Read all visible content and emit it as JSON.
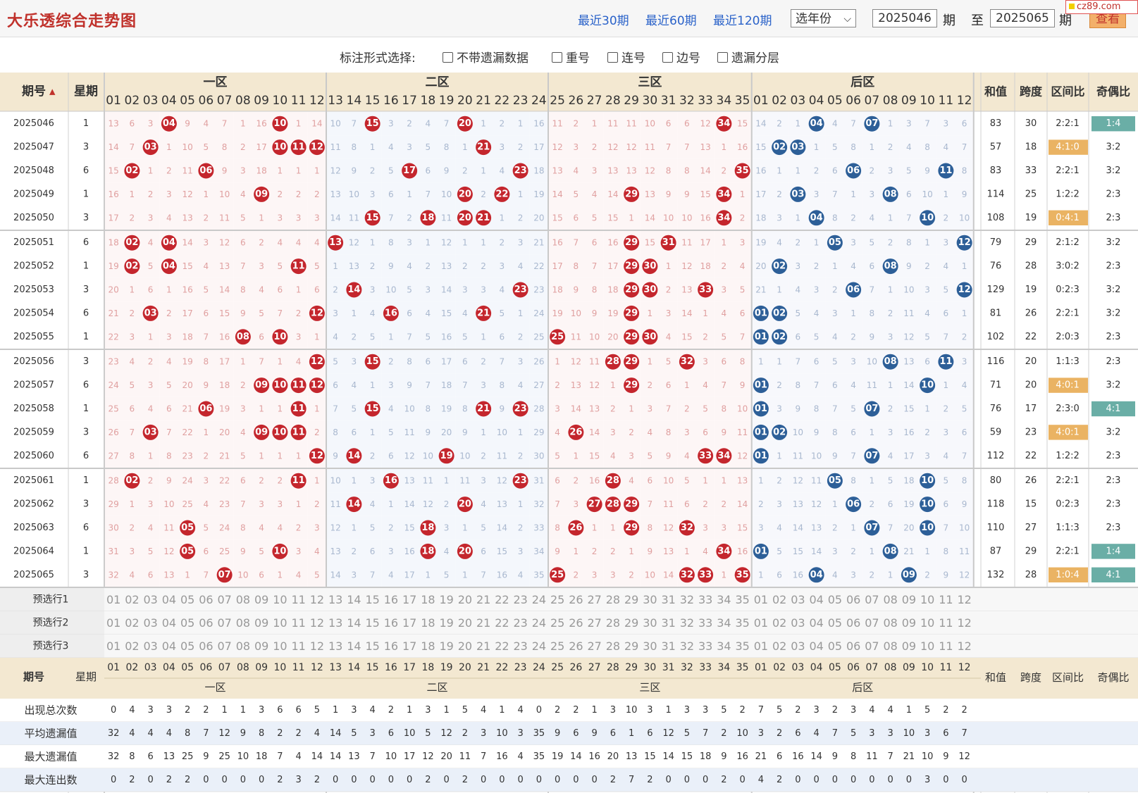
{
  "header": {
    "title": "大乐透综合走势图",
    "recent30": "最近30期",
    "recent60": "最近60期",
    "recent120": "最近120期",
    "year_select": "选年份",
    "from_issue": "2025046",
    "qi": "期",
    "to_label": "至",
    "to_issue": "2025065",
    "query": "查看",
    "brand": "cz89.com"
  },
  "options": {
    "label": "标注形式选择:",
    "items": [
      "不带遗漏数据",
      "重号",
      "连号",
      "边号",
      "遗漏分层"
    ]
  },
  "table": {
    "col_issue": "期号",
    "col_week": "星期",
    "zones": [
      "一区",
      "二区",
      "三区",
      "后区"
    ],
    "stat_cols": [
      "和值",
      "跨度",
      "区间比",
      "奇偶比"
    ],
    "rows": [
      {
        "issue": "2025046",
        "week": "1",
        "cells": "13,6,3,*,9,4,7,1,16,*,1,14,10,7,*,3,2,4,7,*,1,2,1,16,11,2,1,11,11,10,6,6,12,*,15,14,2,1,*,4,7,*,1,3,7,3,6",
        "sum": "83",
        "span": "30",
        "ratio": "2:2:1",
        "oe": "1:4",
        "hlratio": false,
        "hloe": "blue"
      },
      {
        "issue": "2025047",
        "week": "3",
        "cells": "14,7,*,1,10,5,8,2,17,*,*,*,11,8,1,4,3,5,8,1,*,3,2,17,12,3,2,12,12,11,7,7,13,1,16,15,*,*,1,5,8,1,2,4,8,4,7",
        "sum": "57",
        "span": "18",
        "ratio": "4:1:0",
        "oe": "3:2",
        "hlratio": "orange",
        "hloe": false
      },
      {
        "issue": "2025048",
        "week": "6",
        "cells": "15,*,1,2,11,*,9,3,18,1,1,1,12,9,2,5,*,6,9,2,1,4,*,18,13,4,3,13,13,12,8,8,14,2,*,16,1,1,2,6,*,2,3,5,9,*,8",
        "sum": "83",
        "span": "33",
        "ratio": "2:2:1",
        "oe": "3:2",
        "hlratio": false,
        "hloe": false
      },
      {
        "issue": "2025049",
        "week": "1",
        "cells": "16,1,2,3,12,1,10,4,*,2,2,2,13,10,3,6,1,7,10,*,2,*,1,19,14,5,4,14,*,13,9,9,15,*,1,17,2,*,3,7,1,3,*,6,10,1,9",
        "sum": "114",
        "span": "25",
        "ratio": "1:2:2",
        "oe": "2:3",
        "hlratio": false,
        "hloe": false
      },
      {
        "issue": "2025050",
        "week": "3",
        "cells": "17,2,3,4,13,2,11,5,1,3,3,3,14,11,*,7,2,*,11,*,*,1,2,20,15,6,5,15,1,14,10,10,16,*,2,18,3,1,*,8,2,4,1,7,*,2,10",
        "sum": "108",
        "span": "19",
        "ratio": "0:4:1",
        "oe": "2:3",
        "hlratio": "orange",
        "hloe": false
      },
      {
        "issue": "2025051",
        "week": "6",
        "cells": "18,*,4,*,14,3,12,6,2,4,4,4,*,12,1,8,3,1,12,1,1,2,3,21,16,7,6,16,*,15,*,11,17,1,3,19,4,2,1,*,3,5,2,8,1,3,*",
        "sum": "79",
        "span": "29",
        "ratio": "2:1:2",
        "oe": "3:2",
        "hlratio": false,
        "hloe": false
      },
      {
        "issue": "2025052",
        "week": "1",
        "cells": "19,*,5,*,15,4,13,7,3,5,*,5,1,13,2,9,4,2,13,2,2,3,4,22,17,8,7,17,*,*,1,12,18,2,4,20,*,3,2,1,4,6,*,9,2,4,1",
        "sum": "76",
        "span": "28",
        "ratio": "3:0:2",
        "oe": "2:3",
        "hlratio": false,
        "hloe": false
      },
      {
        "issue": "2025053",
        "week": "3",
        "cells": "20,1,6,1,16,5,14,8,4,6,1,6,2,*,3,10,5,3,14,3,3,4,*,23,18,9,8,18,*,*,2,13,*,3,5,21,1,4,3,2,*,7,1,10,3,5,*",
        "sum": "129",
        "span": "19",
        "ratio": "0:2:3",
        "oe": "3:2",
        "hlratio": false,
        "hloe": false
      },
      {
        "issue": "2025054",
        "week": "6",
        "cells": "21,2,*,2,17,6,15,9,5,7,2,*,3,1,4,*,6,4,15,4,*,5,1,24,19,10,9,19,*,1,3,14,1,4,6,*,*,5,4,3,1,8,2,11,4,6,1",
        "sum": "81",
        "span": "26",
        "ratio": "2:2:1",
        "oe": "3:2",
        "hlratio": false,
        "hloe": false
      },
      {
        "issue": "2025055",
        "week": "1",
        "cells": "22,3,1,3,18,7,16,*,6,*,3,1,4,2,5,1,7,5,16,5,1,6,2,25,*,11,10,20,*,*,4,15,2,5,7,*,*,6,5,4,2,9,3,12,5,7,2",
        "sum": "102",
        "span": "22",
        "ratio": "2:0:3",
        "oe": "2:3",
        "hlratio": false,
        "hloe": false
      },
      {
        "issue": "2025056",
        "week": "3",
        "cells": "23,4,2,4,19,8,17,1,7,1,4,*,5,3,*,2,8,6,17,6,2,7,3,26,1,12,11,*,*,1,5,*,3,6,8,1,1,7,6,5,3,10,*,13,6,*,3",
        "sum": "116",
        "span": "20",
        "ratio": "1:1:3",
        "oe": "2:3",
        "hlratio": false,
        "hloe": false
      },
      {
        "issue": "2025057",
        "week": "6",
        "cells": "24,5,3,5,20,9,18,2,*,*,*,*,6,4,1,3,9,7,18,7,3,8,4,27,2,13,12,1,*,2,6,1,4,7,9,*,2,8,7,6,4,11,1,14,*,1,4",
        "sum": "71",
        "span": "20",
        "ratio": "4:0:1",
        "oe": "3:2",
        "hlratio": "orange",
        "hloe": false
      },
      {
        "issue": "2025058",
        "week": "1",
        "cells": "25,6,4,6,21,*,19,3,1,1,*,1,7,5,*,4,10,8,19,8,*,9,*,28,3,14,13,2,1,3,7,2,5,8,10,*,3,9,8,7,5,*,2,15,1,2,5",
        "sum": "76",
        "span": "17",
        "ratio": "2:3:0",
        "oe": "4:1",
        "hlratio": false,
        "hloe": "blue"
      },
      {
        "issue": "2025059",
        "week": "3",
        "cells": "26,7,*,7,22,1,20,4,*,*,*,2,8,6,1,5,11,9,20,9,1,10,1,29,4,*,14,3,2,4,8,3,6,9,11,*,*,10,9,8,6,1,3,16,2,3,6",
        "sum": "59",
        "span": "23",
        "ratio": "4:0:1",
        "oe": "3:2",
        "hlratio": "orange",
        "hloe": false
      },
      {
        "issue": "2025060",
        "week": "6",
        "cells": "27,8,1,8,23,2,21,5,1,1,1,*,9,*,2,6,12,10,*,10,2,11,2,30,5,1,15,4,3,5,9,4,*,*,12,*,1,11,10,9,7,*,4,17,3,4,7",
        "sum": "112",
        "span": "22",
        "ratio": "1:2:2",
        "oe": "2:3",
        "hlratio": false,
        "hloe": false
      },
      {
        "issue": "2025061",
        "week": "1",
        "cells": "28,*,2,9,24,3,22,6,2,2,*,1,10,1,3,*,13,11,1,11,3,12,*,31,6,2,16,*,4,6,10,5,1,1,13,1,2,12,11,*,8,1,5,18,*,5,8",
        "sum": "80",
        "span": "26",
        "ratio": "2:2:1",
        "oe": "2:3",
        "hlratio": false,
        "hloe": false
      },
      {
        "issue": "2025062",
        "week": "3",
        "cells": "29,1,3,10,25,4,23,7,3,3,1,2,11,*,4,1,14,12,2,*,4,13,1,32,7,3,*,*,*,7,11,6,2,2,14,2,3,13,12,1,*,2,6,19,*,6,9",
        "sum": "118",
        "span": "15",
        "ratio": "0:2:3",
        "oe": "2:3",
        "hlratio": false,
        "hloe": false
      },
      {
        "issue": "2025063",
        "week": "6",
        "cells": "30,2,4,11,*,5,24,8,4,4,2,3,12,1,5,2,15,*,3,1,5,14,2,33,8,*,1,1,*,8,12,*,3,3,15,3,4,14,13,2,1,*,7,20,*,7,10",
        "sum": "110",
        "span": "27",
        "ratio": "1:1:3",
        "oe": "2:3",
        "hlratio": false,
        "hloe": false
      },
      {
        "issue": "2025064",
        "week": "1",
        "cells": "31,3,5,12,*,6,25,9,5,*,3,4,13,2,6,3,16,*,4,*,6,15,3,34,9,1,2,2,1,9,13,1,4,*,16,*,5,15,14,3,2,1,*,21,1,8,11",
        "sum": "87",
        "span": "29",
        "ratio": "2:2:1",
        "oe": "1:4",
        "hlratio": false,
        "hloe": "blue"
      },
      {
        "issue": "2025065",
        "week": "3",
        "cells": "32,4,6,13,1,7,*,10,6,1,4,5,14,3,7,4,17,1,5,1,7,16,4,35,*,2,3,3,2,10,14,*,*,1,*,1,6,16,*,4,3,2,1,*,2,9,12",
        "sum": "132",
        "span": "28",
        "ratio": "1:0:4",
        "oe": "4:1",
        "hlratio": "orange",
        "hloe": "blue"
      }
    ],
    "winning": [
      {
        "front": [
          "04",
          "10",
          "15",
          "20",
          "34"
        ],
        "back": [
          "04",
          "07"
        ]
      },
      {
        "front": [
          "03",
          "10",
          "11",
          "12",
          "21"
        ],
        "back": [
          "02",
          "03"
        ]
      },
      {
        "front": [
          "02",
          "06",
          "17",
          "23",
          "35"
        ],
        "back": [
          "06",
          "11"
        ]
      },
      {
        "front": [
          "09",
          "20",
          "22",
          "29",
          "34"
        ],
        "back": [
          "03",
          "08"
        ]
      },
      {
        "front": [
          "15",
          "18",
          "20",
          "21",
          "34"
        ],
        "back": [
          "04",
          "10"
        ]
      },
      {
        "front": [
          "02",
          "04",
          "13",
          "29",
          "31"
        ],
        "back": [
          "05",
          "12"
        ]
      },
      {
        "front": [
          "02",
          "04",
          "11",
          "29",
          "30"
        ],
        "back": [
          "02",
          "08"
        ]
      },
      {
        "front": [
          "14",
          "23",
          "29",
          "30",
          "33"
        ],
        "back": [
          "06",
          "12"
        ]
      },
      {
        "front": [
          "03",
          "12",
          "16",
          "21",
          "29"
        ],
        "back": [
          "01",
          "02"
        ]
      },
      {
        "front": [
          "08",
          "10",
          "25",
          "29",
          "30"
        ],
        "back": [
          "01",
          "02"
        ]
      },
      {
        "front": [
          "12",
          "15",
          "28",
          "29",
          "32"
        ],
        "back": [
          "08",
          "11"
        ]
      },
      {
        "front": [
          "09",
          "10",
          "11",
          "12",
          "29"
        ],
        "back": [
          "01",
          "10"
        ]
      },
      {
        "front": [
          "06",
          "11",
          "15",
          "21",
          "23"
        ],
        "back": [
          "01",
          "07"
        ]
      },
      {
        "front": [
          "03",
          "09",
          "10",
          "11",
          "26"
        ],
        "back": [
          "01",
          "02"
        ]
      },
      {
        "front": [
          "12",
          "14",
          "19",
          "33",
          "34"
        ],
        "back": [
          "01",
          "07"
        ]
      },
      {
        "front": [
          "02",
          "11",
          "16",
          "23",
          "28"
        ],
        "back": [
          "05",
          "10"
        ]
      },
      {
        "front": [
          "14",
          "20",
          "27",
          "28",
          "29"
        ],
        "back": [
          "06",
          "10"
        ]
      },
      {
        "front": [
          "05",
          "18",
          "26",
          "29",
          "32"
        ],
        "back": [
          "07",
          "10"
        ]
      },
      {
        "front": [
          "05",
          "10",
          "18",
          "20",
          "34"
        ],
        "back": [
          "01",
          "08"
        ]
      },
      {
        "front": [
          "07",
          "25",
          "32",
          "33",
          "35"
        ],
        "back": [
          "04",
          "09"
        ]
      }
    ],
    "preselect": [
      "预选行1",
      "预选行2",
      "预选行3"
    ],
    "stats": [
      {
        "label": "出现总次数",
        "values": "0,4,3,3,2,2,1,1,3,6,6,5,1,3,4,2,1,3,1,5,4,1,4,0,2,2,1,3,10,3,1,3,3,5,2,7,5,2,3,2,3,4,4,1,5,2,2"
      },
      {
        "label": "平均遗漏值",
        "values": "32,4,4,4,8,7,12,9,8,2,2,4,14,5,3,6,10,5,12,2,3,10,3,35,9,6,9,6,1,6,12,5,7,2,10,3,2,6,4,7,5,3,3,10,3,6,7"
      },
      {
        "label": "最大遗漏值",
        "values": "32,8,6,13,25,9,25,10,18,7,4,14,14,13,7,10,17,12,20,11,7,16,4,35,19,14,16,20,13,15,14,15,18,9,16,21,6,16,14,9,8,11,7,21,10,9,12"
      },
      {
        "label": "最大连出数",
        "values": "0,2,0,2,2,0,0,0,0,2,3,2,0,0,0,0,0,2,0,2,0,0,0,0,0,0,0,2,7,2,0,0,0,2,0,4,2,0,0,0,0,0,0,0,3,0,0"
      }
    ]
  },
  "colors": {
    "red": "#c4262d",
    "blue": "#2d5f98",
    "orange": "#eab363",
    "teal": "#6aaea6",
    "header_bg": "#f3e8d1",
    "blue_tint": "#eaf0f9",
    "red_tint": "#fbeeee"
  }
}
